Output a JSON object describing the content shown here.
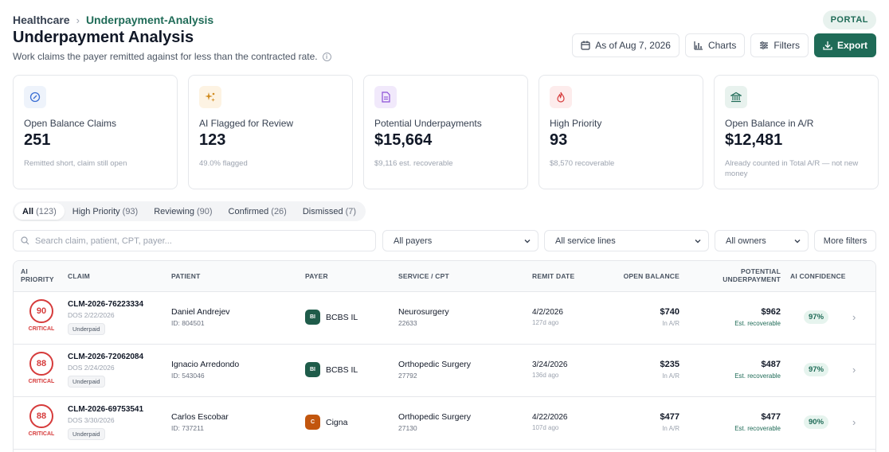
{
  "breadcrumb": {
    "root": "Healthcare",
    "current": "Underpayment-Analysis"
  },
  "portal_badge": "PORTAL",
  "page": {
    "title": "Underpayment Analysis",
    "subtitle": "Work claims the payer remitted against for less than the contracted rate."
  },
  "toolbar": {
    "date": "As of Aug 7, 2026",
    "charts": "Charts",
    "filters": "Filters",
    "export": "Export"
  },
  "kpis": [
    {
      "label": "Open Balance Claims",
      "value": "251",
      "sub": "Remitted short, claim still open",
      "icon": "gauge-icon",
      "icon_bg": "#eef3fb",
      "icon_color": "#3b6fd4"
    },
    {
      "label": "AI Flagged for Review",
      "value": "123",
      "sub": "49.0% flagged",
      "icon": "sparkle-icon",
      "icon_bg": "#fdf3e3",
      "icon_color": "#d08a1e"
    },
    {
      "label": "Potential Underpayments",
      "value": "$15,664",
      "sub": "$9,116 est. recoverable",
      "icon": "document-icon",
      "icon_bg": "#f1e9fb",
      "icon_color": "#8b4fd6"
    },
    {
      "label": "High Priority",
      "value": "93",
      "sub": "$8,570 recoverable",
      "icon": "flame-icon",
      "icon_bg": "#fdecec",
      "icon_color": "#d63b3b"
    },
    {
      "label": "Open Balance in A/R",
      "value": "$12,481",
      "sub": "Already counted in Total A/R — not new money",
      "icon": "bank-icon",
      "icon_bg": "#e8f2ee",
      "icon_color": "#1f6b57"
    }
  ],
  "tabs": [
    {
      "label": "All",
      "count": "(123)"
    },
    {
      "label": "High Priority",
      "count": "(93)"
    },
    {
      "label": "Reviewing",
      "count": "(90)"
    },
    {
      "label": "Confirmed",
      "count": "(26)"
    },
    {
      "label": "Dismissed",
      "count": "(7)"
    }
  ],
  "filters": {
    "search_placeholder": "Search claim, patient, CPT, payer...",
    "payers": "All payers",
    "service_lines": "All service lines",
    "owners": "All owners",
    "more": "More filters"
  },
  "table": {
    "headers": {
      "ai_priority": "AI PRIORITY",
      "claim": "CLAIM",
      "patient": "PATIENT",
      "payer": "PAYER",
      "service": "SERVICE / CPT",
      "remit_date": "REMIT DATE",
      "open_balance": "OPEN BALANCE",
      "potential": "POTENTIAL UNDERPAYMENT",
      "confidence": "AI CONFIDENCE"
    },
    "rows": [
      {
        "priority": "90",
        "priority_label": "CRITICAL",
        "claim_id": "CLM-2026-76223334",
        "dos": "DOS 2/22/2026",
        "tag": "Underpaid",
        "patient": "Daniel Andrejev",
        "patient_id": "ID: 804501",
        "payer_abbr": "BI",
        "payer": "BCBS IL",
        "payer_color": "#1f5c4a",
        "service": "Neurosurgery",
        "cpt": "22633",
        "remit_date": "4/2/2026",
        "remit_ago": "127d ago",
        "balance": "$740",
        "balance_sub": "In A/R",
        "potential": "$962",
        "potential_sub": "Est. recoverable",
        "confidence": "97%"
      },
      {
        "priority": "88",
        "priority_label": "CRITICAL",
        "claim_id": "CLM-2026-72062084",
        "dos": "DOS 2/24/2026",
        "tag": "Underpaid",
        "patient": "Ignacio Arredondo",
        "patient_id": "ID: 543046",
        "payer_abbr": "BI",
        "payer": "BCBS IL",
        "payer_color": "#1f5c4a",
        "service": "Orthopedic Surgery",
        "cpt": "27792",
        "remit_date": "3/24/2026",
        "remit_ago": "136d ago",
        "balance": "$235",
        "balance_sub": "In A/R",
        "potential": "$487",
        "potential_sub": "Est. recoverable",
        "confidence": "97%"
      },
      {
        "priority": "88",
        "priority_label": "CRITICAL",
        "claim_id": "CLM-2026-69753541",
        "dos": "DOS 3/30/2026",
        "tag": "Underpaid",
        "patient": "Carlos Escobar",
        "patient_id": "ID: 737211",
        "payer_abbr": "C",
        "payer": "Cigna",
        "payer_color": "#c2560e",
        "service": "Orthopedic Surgery",
        "cpt": "27130",
        "remit_date": "4/22/2026",
        "remit_ago": "107d ago",
        "balance": "$477",
        "balance_sub": "In A/R",
        "potential": "$477",
        "potential_sub": "Est. recoverable",
        "confidence": "90%"
      }
    ]
  }
}
